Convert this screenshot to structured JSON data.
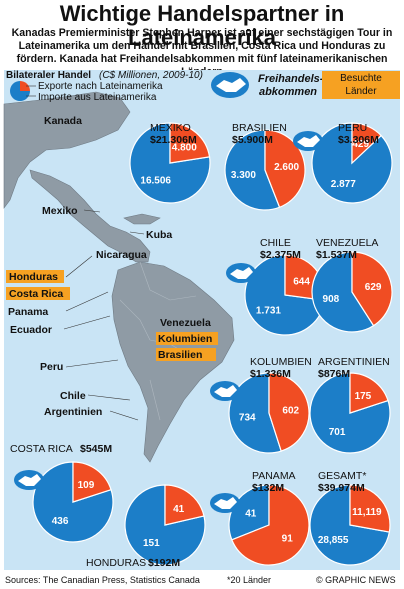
{
  "title": "Wichtige Handelspartner in Lateinamerika",
  "subtitle": "Kanadas Premierminister Stephen Harper ist auf einer sechstägigen Tour in Lateinamerika um den Handel mit Brasilien, Costa Rica und Honduras zu fördern. Kanada hat Freihandelsabkommen mit fünf lateinamerikanischen Ländern",
  "legend": {
    "heading": "Bilateraler Handel",
    "units": "(C$ Millionen, 2009-10)",
    "exports": "Exporte nach Lateinamerika",
    "imports": "Importe aus Lateinamerika"
  },
  "free_trade_label": "Freihandels-\nabkommen",
  "visited_label": "Besuchte\nLänder",
  "colors": {
    "exports": "#f04d23",
    "imports": "#1c7ec8",
    "map_land": "#8f9ba5",
    "sea": "#c9e4f5",
    "visited": "#f6a122"
  },
  "map_labels": {
    "canada": "Kanada",
    "mexico": "Mexiko",
    "cuba": "Kuba",
    "nicaragua": "Nicaragua",
    "honduras": "Honduras",
    "costa_rica": "Costa Rica",
    "panama": "Panama",
    "ecuador": "Ecuador",
    "venezuela": "Venezuela",
    "colombia": "Kolumbien",
    "brazil": "Brasilien",
    "peru": "Peru",
    "chile": "Chile",
    "argentina": "Argentinien"
  },
  "footer": {
    "sources": "Sources: The Canadian Press, Statistics Canada",
    "note": "*20 Länder",
    "credit": "© GRAPHIC NEWS"
  },
  "chart_data": {
    "type": "pie",
    "series_names": [
      "Exporte nach Lateinamerika",
      "Importe aus Lateinamerika"
    ],
    "pies": [
      {
        "country": "MEXIKO",
        "total": "$21.306M",
        "exports": 4800,
        "imports": 16506,
        "exports_label": "4.800",
        "imports_label": "16.506",
        "free_trade": false
      },
      {
        "country": "BRASILIEN",
        "total": "$5.900M",
        "exports": 2600,
        "imports": 3300,
        "exports_label": "2.600",
        "imports_label": "3.300",
        "free_trade": false
      },
      {
        "country": "PERU",
        "total": "$3.306M",
        "exports": 429,
        "imports": 2877,
        "exports_label": "429",
        "imports_label": "2.877",
        "free_trade": true
      },
      {
        "country": "CHILE",
        "total": "$2.375M",
        "exports": 644,
        "imports": 1731,
        "exports_label": "644",
        "imports_label": "1.731",
        "free_trade": true
      },
      {
        "country": "VENEZUELA",
        "total": "$1.537M",
        "exports": 629,
        "imports": 908,
        "exports_label": "629",
        "imports_label": "908",
        "free_trade": false
      },
      {
        "country": "KOLUMBIEN",
        "total": "$1.336M",
        "exports": 602,
        "imports": 734,
        "exports_label": "602",
        "imports_label": "734",
        "free_trade": true
      },
      {
        "country": "ARGENTINIEN",
        "total": "$876M",
        "exports": 175,
        "imports": 701,
        "exports_label": "175",
        "imports_label": "701",
        "free_trade": false
      },
      {
        "country": "COSTA RICA",
        "total": "$545M",
        "exports": 109,
        "imports": 436,
        "exports_label": "109",
        "imports_label": "436",
        "free_trade": true
      },
      {
        "country": "HONDURAS",
        "total": "$192M",
        "exports": 41,
        "imports": 151,
        "exports_label": "41",
        "imports_label": "151",
        "free_trade": false
      },
      {
        "country": "PANAMA",
        "total": "$132M",
        "exports": 91,
        "imports": 41,
        "exports_label": "91",
        "imports_label": "41",
        "free_trade": true
      },
      {
        "country": "GESAMT*",
        "total": "$39.974M",
        "exports": 11119,
        "imports": 28855,
        "exports_label": "11,119",
        "imports_label": "28,855",
        "free_trade": false
      }
    ]
  }
}
